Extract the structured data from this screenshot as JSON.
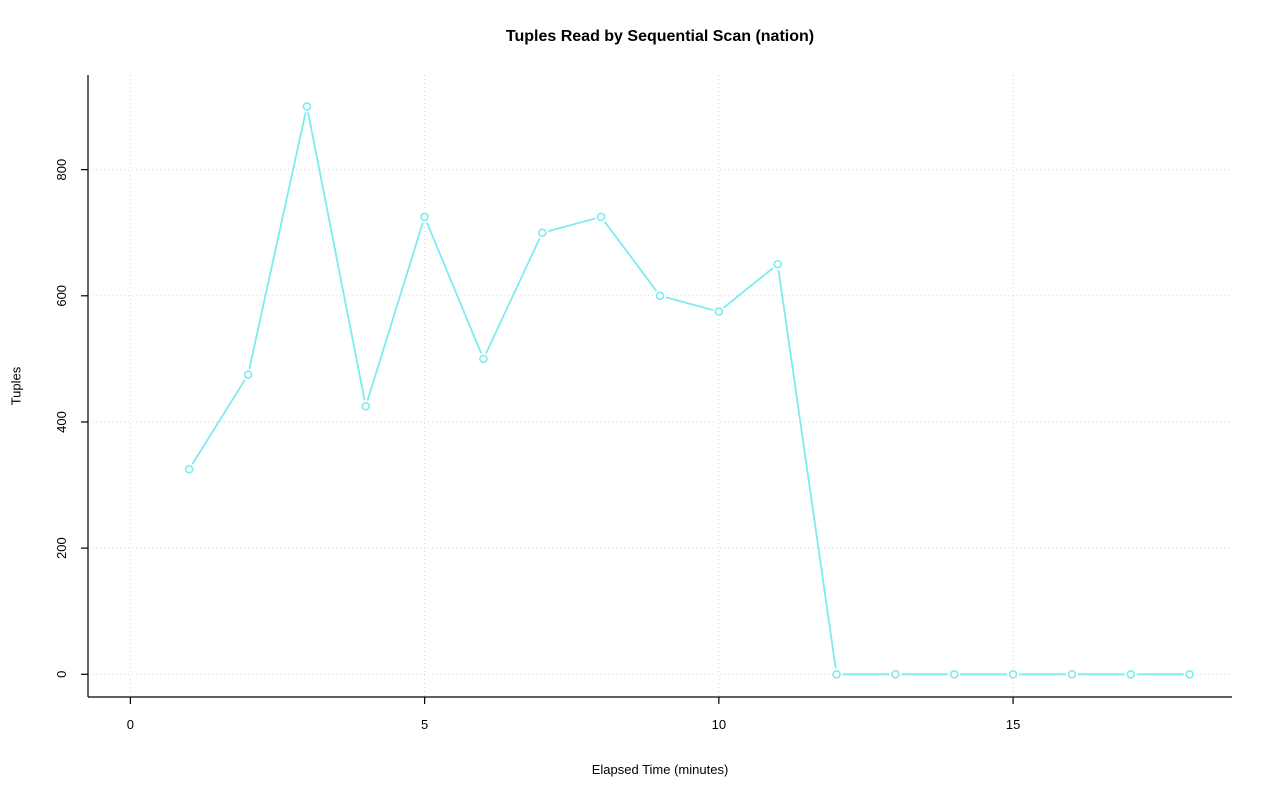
{
  "chart_data": {
    "type": "line",
    "title": "Tuples Read by Sequential Scan (nation)",
    "xlabel": "Elapsed Time (minutes)",
    "ylabel": "Tuples",
    "x": [
      1,
      2,
      3,
      4,
      5,
      6,
      7,
      8,
      9,
      10,
      11,
      12,
      13,
      14,
      15,
      16,
      17,
      18
    ],
    "values": [
      325,
      475,
      900,
      425,
      725,
      500,
      700,
      725,
      600,
      575,
      650,
      0,
      0,
      0,
      0,
      0,
      0,
      0
    ],
    "x_ticks": [
      0,
      5,
      10,
      15
    ],
    "y_ticks": [
      0,
      200,
      400,
      600,
      800
    ],
    "xlim": [
      -0.72,
      18.72
    ],
    "ylim": [
      -36,
      950
    ],
    "grid": true,
    "legend": "none",
    "marker": "open-circle",
    "line_color": "#7DEBF0",
    "grid_color": "#D6D6D6",
    "axis_color": "#000000",
    "background": "#FFFFFF"
  }
}
